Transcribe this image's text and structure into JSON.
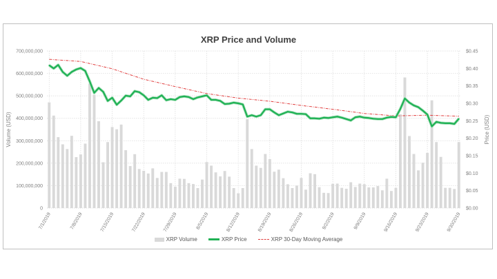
{
  "chart_data": {
    "type": "bar+line",
    "title": "XRP Price and Volume",
    "ylabel": "Volume (USD)",
    "y2label": "Price (USD)",
    "ylim": [
      0,
      700000000
    ],
    "y2lim": [
      0,
      0.45
    ],
    "yticks": [
      "0",
      "100,000,000",
      "200,000,000",
      "300,000,000",
      "400,000,000",
      "500,000,000",
      "600,000,000",
      "700,000,000"
    ],
    "y2ticks": [
      "$0.00",
      "$0.05",
      "$0.10",
      "$0.15",
      "$0.20",
      "$0.25",
      "$0.30",
      "$0.35",
      "$0.40",
      "$0.45"
    ],
    "xticks": [
      "7/1/2019",
      "7/8/2019",
      "7/15/2019",
      "7/22/2019",
      "7/29/2019",
      "8/5/2019",
      "8/12/2019",
      "8/19/2019",
      "8/26/2019",
      "9/2/2019",
      "9/9/2019",
      "9/16/2019",
      "9/23/2019",
      "9/30/2019"
    ],
    "x_start": "7/1/2019",
    "x_end": "9/30/2019",
    "grid": true,
    "legend_position": "bottom",
    "colors": {
      "volume": "#d9d9d9",
      "price": "#1fb154",
      "moving_average": "#e03c3c"
    },
    "series": [
      {
        "name": "XRP Volume",
        "type": "bar",
        "axis": "left",
        "values": [
          471,
          412,
          316,
          284,
          263,
          322,
          227,
          239,
          287,
          555,
          505,
          387,
          204,
          294,
          361,
          351,
          372,
          258,
          187,
          240,
          174,
          166,
          154,
          177,
          134,
          161,
          161,
          111,
          95,
          131,
          130,
          111,
          107,
          89,
          127,
          205,
          189,
          159,
          141,
          165,
          140,
          89,
          66,
          89,
          396,
          263,
          189,
          179,
          241,
          218,
          162,
          171,
          133,
          106,
          89,
          100,
          134,
          82,
          155,
          151,
          93,
          68,
          67,
          108,
          109,
          90,
          86,
          115,
          94,
          109,
          106,
          92,
          92,
          98,
          79,
          131,
          76,
          90,
          418,
          582,
          321,
          241,
          168,
          202,
          246,
          480,
          294,
          228,
          90,
          90,
          85,
          294
        ],
        "unit": "millions USD"
      },
      {
        "name": "XRP Price",
        "type": "line",
        "axis": "right",
        "values": [
          0.409,
          0.4,
          0.41,
          0.39,
          0.379,
          0.39,
          0.397,
          0.401,
          0.393,
          0.363,
          0.33,
          0.344,
          0.333,
          0.307,
          0.316,
          0.296,
          0.308,
          0.322,
          0.32,
          0.335,
          0.332,
          0.323,
          0.31,
          0.316,
          0.315,
          0.323,
          0.309,
          0.312,
          0.31,
          0.318,
          0.32,
          0.318,
          0.312,
          0.317,
          0.32,
          0.323,
          0.31,
          0.31,
          0.307,
          0.298,
          0.299,
          0.302,
          0.3,
          0.297,
          0.262,
          0.266,
          0.262,
          0.266,
          0.283,
          0.283,
          0.274,
          0.266,
          0.271,
          0.276,
          0.274,
          0.27,
          0.27,
          0.269,
          0.257,
          0.257,
          0.256,
          0.259,
          0.258,
          0.26,
          0.262,
          0.259,
          0.255,
          0.251,
          0.26,
          0.262,
          0.259,
          0.258,
          0.256,
          0.255,
          0.255,
          0.259,
          0.261,
          0.26,
          0.284,
          0.314,
          0.302,
          0.294,
          0.289,
          0.279,
          0.268,
          0.234,
          0.247,
          0.244,
          0.243,
          0.243,
          0.241,
          0.256
        ]
      },
      {
        "name": "XRP 30-Day Moving Average",
        "type": "line",
        "axis": "right",
        "dates": [
          "7/1/2019",
          "7/8/2019",
          "7/15/2019",
          "7/22/2019",
          "7/29/2019",
          "8/5/2019",
          "8/12/2019",
          "8/19/2019",
          "8/26/2019",
          "9/2/2019",
          "9/9/2019",
          "9/16/2019",
          "9/23/2019",
          "9/30/2019"
        ],
        "values": [
          0.426,
          0.42,
          0.399,
          0.369,
          0.348,
          0.328,
          0.315,
          0.306,
          0.294,
          0.283,
          0.271,
          0.264,
          0.266,
          0.263
        ]
      }
    ]
  }
}
